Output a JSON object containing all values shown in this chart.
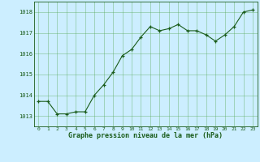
{
  "x": [
    0,
    1,
    2,
    3,
    4,
    5,
    6,
    7,
    8,
    9,
    10,
    11,
    12,
    13,
    14,
    15,
    16,
    17,
    18,
    19,
    20,
    21,
    22,
    23
  ],
  "y": [
    1013.7,
    1013.7,
    1013.1,
    1013.1,
    1013.2,
    1013.2,
    1014.0,
    1014.5,
    1015.1,
    1015.9,
    1016.2,
    1016.8,
    1017.3,
    1017.1,
    1017.2,
    1017.4,
    1017.1,
    1017.1,
    1016.9,
    1016.6,
    1016.9,
    1017.3,
    1018.0,
    1018.1
  ],
  "ylim": [
    1012.5,
    1018.5
  ],
  "xlim": [
    -0.5,
    23.5
  ],
  "yticks": [
    1013,
    1014,
    1015,
    1016,
    1017,
    1018
  ],
  "xticks": [
    0,
    1,
    2,
    3,
    4,
    5,
    6,
    7,
    8,
    9,
    10,
    11,
    12,
    13,
    14,
    15,
    16,
    17,
    18,
    19,
    20,
    21,
    22,
    23
  ],
  "line_color": "#1a5c1a",
  "marker_color": "#1a5c1a",
  "bg_color": "#cceeff",
  "grid_color": "#5aaa5a",
  "xlabel": "Graphe pression niveau de la mer (hPa)",
  "xlabel_color": "#1a5c1a",
  "tick_color": "#1a5c1a"
}
